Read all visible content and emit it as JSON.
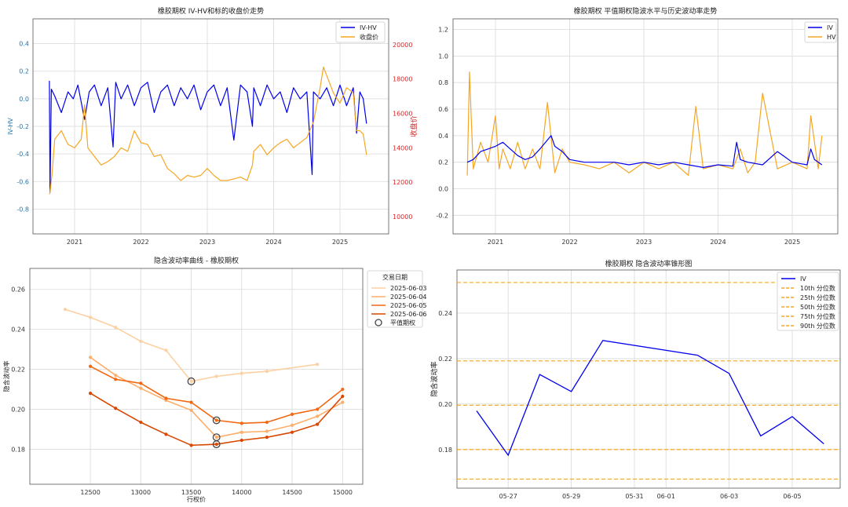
{
  "chart_data": [
    {
      "type": "line",
      "title": "橡胶期权 IV-HV和标的收盘价走势",
      "ylabel": "IV-HV",
      "y2label": "收盘价",
      "xticks": [
        "2021",
        "2022",
        "2023",
        "2024",
        "2025"
      ],
      "ylim": [
        -0.98,
        0.58
      ],
      "yticks": [
        -0.8,
        -0.6,
        -0.4,
        -0.2,
        0.0,
        0.2,
        0.4
      ],
      "y2lim": [
        9000,
        21500
      ],
      "y2ticks": [
        10000,
        12000,
        14000,
        16000,
        18000,
        20000
      ],
      "grid": true,
      "legend": "top-right",
      "legend_entries": [
        "IV-HV",
        "收盘价"
      ],
      "colors": {
        "iv_hv": "#0000ee",
        "close": "#f5a623",
        "y2axis": "#d62728",
        "yaxis": "#1f77b4"
      },
      "series": [
        {
          "name": "IV-HV",
          "x": [
            2020.62,
            2020.63,
            2020.65,
            2020.7,
            2020.8,
            2020.9,
            2020.98,
            2021.05,
            2021.15,
            2021.22,
            2021.3,
            2021.4,
            2021.5,
            2021.58,
            2021.62,
            2021.7,
            2021.8,
            2021.9,
            2022.0,
            2022.1,
            2022.2,
            2022.3,
            2022.4,
            2022.5,
            2022.6,
            2022.7,
            2022.8,
            2022.9,
            2023.0,
            2023.1,
            2023.2,
            2023.3,
            2023.4,
            2023.5,
            2023.6,
            2023.68,
            2023.7,
            2023.8,
            2023.9,
            2024.0,
            2024.1,
            2024.2,
            2024.3,
            2024.4,
            2024.5,
            2024.58,
            2024.6,
            2024.7,
            2024.8,
            2024.9,
            2025.0,
            2025.1,
            2025.2,
            2025.25,
            2025.3,
            2025.35,
            2025.4
          ],
          "y": [
            0.13,
            -0.68,
            0.07,
            0.02,
            -0.1,
            0.05,
            0.0,
            0.1,
            -0.15,
            0.05,
            0.1,
            -0.05,
            0.08,
            -0.35,
            0.12,
            0.0,
            0.1,
            -0.05,
            0.08,
            0.12,
            -0.1,
            0.05,
            0.1,
            -0.05,
            0.08,
            0.0,
            0.1,
            -0.08,
            0.05,
            0.1,
            -0.05,
            0.08,
            -0.3,
            0.1,
            0.05,
            -0.2,
            0.08,
            -0.05,
            0.1,
            0.0,
            0.05,
            -0.1,
            0.08,
            0.0,
            0.05,
            -0.55,
            0.05,
            0.0,
            0.08,
            -0.05,
            0.1,
            -0.05,
            0.08,
            -0.25,
            0.05,
            0.0,
            -0.18
          ]
        },
        {
          "name": "收盘价",
          "x": [
            2020.62,
            2020.63,
            2020.66,
            2020.7,
            2020.8,
            2020.9,
            2021.0,
            2021.1,
            2021.15,
            2021.2,
            2021.3,
            2021.4,
            2021.5,
            2021.6,
            2021.7,
            2021.8,
            2021.9,
            2022.0,
            2022.1,
            2022.2,
            2022.3,
            2022.4,
            2022.5,
            2022.6,
            2022.7,
            2022.8,
            2022.9,
            2023.0,
            2023.1,
            2023.2,
            2023.3,
            2023.4,
            2023.5,
            2023.6,
            2023.68,
            2023.7,
            2023.8,
            2023.9,
            2024.0,
            2024.1,
            2024.2,
            2024.3,
            2024.4,
            2024.5,
            2024.6,
            2024.7,
            2024.75,
            2024.8,
            2024.9,
            2025.0,
            2025.1,
            2025.2,
            2025.25,
            2025.3,
            2025.35,
            2025.4
          ],
          "y": [
            11300,
            11400,
            12500,
            14500,
            15000,
            14200,
            14000,
            14500,
            16500,
            14000,
            13500,
            13000,
            13200,
            13500,
            14000,
            13800,
            15000,
            14300,
            14200,
            13500,
            13600,
            12800,
            12500,
            12100,
            12400,
            12300,
            12400,
            12800,
            12400,
            12100,
            12100,
            12200,
            12300,
            12100,
            13000,
            13800,
            14200,
            13600,
            14000,
            14300,
            14500,
            14000,
            14300,
            14600,
            15500,
            17500,
            18700,
            18200,
            17200,
            16600,
            17500,
            17200,
            15000,
            15000,
            14800,
            13600
          ]
        }
      ]
    },
    {
      "type": "line",
      "title": "橡胶期权 平值期权隐波水平与历史波动率走势",
      "xticks": [
        "2021",
        "2022",
        "2023",
        "2024",
        "2025"
      ],
      "ylim": [
        -0.34,
        1.28
      ],
      "yticks": [
        -0.2,
        0.0,
        0.2,
        0.4,
        0.6,
        0.8,
        1.0,
        1.2
      ],
      "grid": true,
      "legend": "top-right",
      "legend_entries": [
        "IV",
        "HV"
      ],
      "colors": {
        "iv": "#0000ee",
        "hv": "#f5a623"
      },
      "series": [
        {
          "name": "IV",
          "x": [
            2020.62,
            2020.7,
            2020.8,
            2020.9,
            2021.0,
            2021.1,
            2021.2,
            2021.3,
            2021.4,
            2021.5,
            2021.6,
            2021.75,
            2021.8,
            2021.9,
            2022.0,
            2022.2,
            2022.4,
            2022.6,
            2022.8,
            2023.0,
            2023.2,
            2023.4,
            2023.6,
            2023.8,
            2024.0,
            2024.2,
            2024.25,
            2024.3,
            2024.4,
            2024.6,
            2024.8,
            2024.9,
            2025.0,
            2025.2,
            2025.25,
            2025.3,
            2025.4
          ],
          "y": [
            0.2,
            0.22,
            0.28,
            0.3,
            0.32,
            0.35,
            0.3,
            0.25,
            0.22,
            0.24,
            0.3,
            0.4,
            0.32,
            0.28,
            0.22,
            0.2,
            0.2,
            0.2,
            0.18,
            0.2,
            0.18,
            0.2,
            0.18,
            0.16,
            0.18,
            0.17,
            0.35,
            0.22,
            0.2,
            0.18,
            0.28,
            0.24,
            0.2,
            0.18,
            0.3,
            0.22,
            0.18
          ]
        },
        {
          "name": "HV",
          "x": [
            2020.62,
            2020.65,
            2020.7,
            2020.8,
            2020.9,
            2021.0,
            2021.05,
            2021.1,
            2021.2,
            2021.3,
            2021.4,
            2021.5,
            2021.6,
            2021.7,
            2021.8,
            2021.9,
            2022.0,
            2022.2,
            2022.4,
            2022.6,
            2022.8,
            2023.0,
            2023.2,
            2023.4,
            2023.6,
            2023.7,
            2023.8,
            2024.0,
            2024.2,
            2024.3,
            2024.4,
            2024.5,
            2024.6,
            2024.8,
            2025.0,
            2025.2,
            2025.25,
            2025.35,
            2025.4
          ],
          "y": [
            0.1,
            0.88,
            0.15,
            0.35,
            0.2,
            0.55,
            0.15,
            0.3,
            0.15,
            0.35,
            0.15,
            0.3,
            0.15,
            0.65,
            0.12,
            0.3,
            0.2,
            0.18,
            0.15,
            0.2,
            0.12,
            0.2,
            0.15,
            0.2,
            0.1,
            0.62,
            0.15,
            0.18,
            0.15,
            0.3,
            0.12,
            0.2,
            0.72,
            0.15,
            0.2,
            0.15,
            0.55,
            0.15,
            0.4
          ]
        }
      ]
    },
    {
      "type": "line",
      "title": "隐含波动率曲线 - 橡胶期权",
      "xlabel": "行权价",
      "ylabel": "隐含波动率",
      "xlim": [
        11900,
        15200
      ],
      "xticks": [
        12500,
        13000,
        13500,
        14000,
        14500,
        15000
      ],
      "ylim": [
        0.1625,
        0.2705
      ],
      "yticks": [
        0.18,
        0.2,
        0.22,
        0.24,
        0.26
      ],
      "grid": true,
      "legend": "top-right",
      "legend_title": "交易日期",
      "legend_entries": [
        "2025-06-03",
        "2025-06-04",
        "2025-06-05",
        "2025-06-06",
        "平值期权"
      ],
      "colors": {
        "s1": "#fdd0a2",
        "s2": "#fdae6b",
        "s3": "#f16913",
        "s4": "#d94801",
        "atm_marker": "#444444"
      },
      "series": [
        {
          "name": "2025-06-03",
          "x": [
            12250,
            12500,
            12750,
            13000,
            13250,
            13500,
            13750,
            14000,
            14250,
            14750
          ],
          "y": [
            0.25,
            0.246,
            0.241,
            0.234,
            0.2295,
            0.214,
            0.2165,
            0.218,
            0.219,
            0.2225
          ]
        },
        {
          "name": "2025-06-04",
          "x": [
            12500,
            12750,
            13000,
            13250,
            13500,
            13750,
            14000,
            14250,
            14500,
            14750,
            15000
          ],
          "y": [
            0.226,
            0.217,
            0.2105,
            0.2045,
            0.1995,
            0.186,
            0.1885,
            0.189,
            0.192,
            0.1965,
            0.2035
          ]
        },
        {
          "name": "2025-06-05",
          "x": [
            12500,
            12750,
            13000,
            13250,
            13500,
            13750,
            14000,
            14250,
            14500,
            14750,
            15000
          ],
          "y": [
            0.2215,
            0.215,
            0.213,
            0.2055,
            0.2035,
            0.1945,
            0.193,
            0.1935,
            0.1975,
            0.2,
            0.21
          ]
        },
        {
          "name": "2025-06-06",
          "x": [
            12500,
            12750,
            13000,
            13250,
            13500,
            13750,
            14000,
            14250,
            14500,
            14750,
            15000
          ],
          "y": [
            0.208,
            0.2005,
            0.1935,
            0.1875,
            0.182,
            0.1825,
            0.1845,
            0.186,
            0.1885,
            0.1925,
            0.2065
          ]
        }
      ],
      "atm_points": [
        {
          "x": 13500,
          "y": 0.214
        },
        {
          "x": 13750,
          "y": 0.1945
        },
        {
          "x": 13750,
          "y": 0.186
        },
        {
          "x": 13750,
          "y": 0.1825
        }
      ]
    },
    {
      "type": "line",
      "title": "橡胶期权 隐含波动率锥形图",
      "ylabel": "隐含波动率",
      "ylim": [
        0.163,
        0.259
      ],
      "yticks": [
        0.18,
        0.2,
        0.22,
        0.24
      ],
      "xticks": [
        "05-27",
        "05-29",
        "05-31",
        "06-01",
        "06-03",
        "06-05"
      ],
      "grid": true,
      "legend": "top-right",
      "legend_entries": [
        "IV",
        "10th 分位数",
        "25th 分位数",
        "50th 分位数",
        "75th 分位数",
        "90th 分位数"
      ],
      "colors": {
        "iv": "#0000ee",
        "percentile": "#f5a623"
      },
      "series": [
        {
          "name": "IV",
          "x": [
            "05-26",
            "05-27",
            "05-28",
            "05-29",
            "05-30",
            "06-02",
            "06-03",
            "06-04",
            "06-05",
            "06-06"
          ],
          "y": [
            0.197,
            0.1775,
            0.213,
            0.2055,
            0.228,
            0.2215,
            0.2135,
            0.186,
            0.1945,
            0.1825
          ]
        }
      ],
      "percentiles": [
        {
          "name": "10th 分位数",
          "value": 0.167
        },
        {
          "name": "25th 分位数",
          "value": 0.18
        },
        {
          "name": "50th 分位数",
          "value": 0.1995
        },
        {
          "name": "75th 分位数",
          "value": 0.219
        },
        {
          "name": "90th 分位数",
          "value": 0.2535
        }
      ]
    }
  ]
}
